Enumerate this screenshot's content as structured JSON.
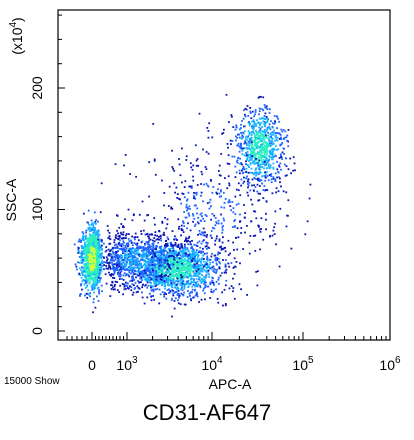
{
  "chart_data": {
    "type": "scatter",
    "style": "flow-cytometry-density-dot-plot",
    "title": "",
    "caption": "CD31-AF647",
    "event_count_label": "15000 Show",
    "xlabel": "APC-A",
    "ylabel": "SSC-A",
    "y_multiplier_label": "(x10",
    "y_multiplier_exp": "4",
    "y_multiplier_close": ")",
    "x_scale": "biexponential",
    "x_ticks": [
      {
        "value": 0,
        "base": "0",
        "exp": ""
      },
      {
        "value": 1000,
        "base": "10",
        "exp": "3"
      },
      {
        "value": 10000,
        "base": "10",
        "exp": "4"
      },
      {
        "value": 100000,
        "base": "10",
        "exp": "5"
      },
      {
        "value": 1000000,
        "base": "10",
        "exp": "6"
      }
    ],
    "y_ticks": [
      {
        "value": 0,
        "label": "0"
      },
      {
        "value": 100,
        "label": "100"
      },
      {
        "value": 200,
        "label": "200"
      }
    ],
    "ylim": [
      -10,
      265
    ],
    "density_colors": [
      "#0a14b4",
      "#1e64ff",
      "#16b4ff",
      "#2cf0c0",
      "#d2ff3c"
    ],
    "populations": [
      {
        "name": "",
        "x_center": 0,
        "x_spread_decades": 0.0,
        "x_linear_sd": 120,
        "y_center": 60,
        "y_sd": 13,
        "events": 1100,
        "peak_density": 4
      },
      {
        "name": "",
        "x_center": 3500,
        "x_spread_decades": 0.28,
        "x_linear_sd": 0,
        "y_center": 52,
        "y_sd": 11,
        "events": 1500,
        "peak_density": 3
      },
      {
        "name": "",
        "x_center": 1200,
        "x_spread_decades": 0.25,
        "x_linear_sd": 0,
        "y_center": 60,
        "y_sd": 11,
        "events": 700,
        "peak_density": 2
      },
      {
        "name": "",
        "x_center": 33000,
        "x_spread_decades": 0.13,
        "x_linear_sd": 0,
        "y_center": 152,
        "y_sd": 16,
        "events": 750,
        "peak_density": 3
      },
      {
        "name": "",
        "x_center": 9000,
        "x_spread_decades": 0.45,
        "x_linear_sd": 0,
        "y_center": 100,
        "y_sd": 28,
        "events": 450,
        "peak_density": 1
      }
    ]
  }
}
